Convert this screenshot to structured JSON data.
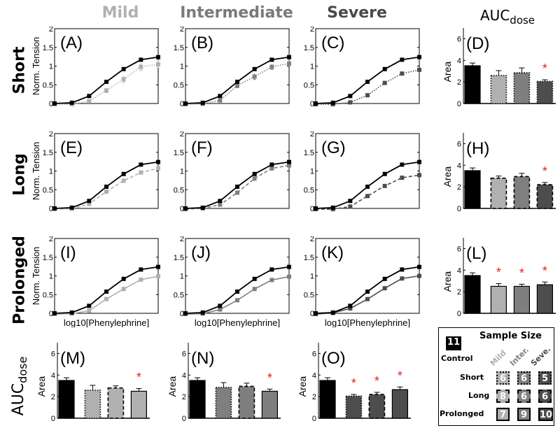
{
  "column_titles": [
    {
      "label": "Mild",
      "color": "#b0b0b0"
    },
    {
      "label": "Intermediate",
      "color": "#7a7a7a"
    },
    {
      "label": "Severe",
      "color": "#4a4a4a"
    }
  ],
  "auc_title": {
    "main": "AUC",
    "sub": "dose"
  },
  "row_titles": [
    "Short",
    "Long",
    "Prolonged"
  ],
  "colors": {
    "control": "#000000",
    "mild": "#b0b0b0",
    "intermediate": "#7f7f7f",
    "severe": "#4d4d4d",
    "significance": "#e8201c"
  },
  "chart_data": [
    {
      "id": "A",
      "type": "line",
      "panel_label": "(A)",
      "row": "Short",
      "column": "Mild",
      "ylabel": "Norm. Tension",
      "xlabel": "",
      "ylim": [
        0,
        2
      ],
      "yticks": [
        "0",
        "0.5",
        "1",
        "1.5",
        "2"
      ],
      "line_style": "dotted",
      "series": [
        {
          "name": "Control",
          "values": [
            0,
            0.02,
            0.2,
            0.58,
            0.92,
            1.17,
            1.24
          ]
        },
        {
          "name": "Mild",
          "values": [
            -0.02,
            -0.02,
            0.06,
            0.35,
            0.65,
            0.98,
            1.05
          ],
          "err": [
            0,
            0,
            0.03,
            0.06,
            0.09,
            0.1,
            0.1
          ]
        }
      ]
    },
    {
      "id": "B",
      "type": "line",
      "panel_label": "(B)",
      "row": "Short",
      "column": "Intermediate",
      "ylabel": "",
      "xlabel": "",
      "ylim": [
        0,
        2
      ],
      "yticks": [
        "0",
        "0.5",
        "1",
        "1.5",
        "2"
      ],
      "line_style": "dotted",
      "series": [
        {
          "name": "Control",
          "values": [
            0,
            0.02,
            0.2,
            0.58,
            0.92,
            1.17,
            1.24
          ]
        },
        {
          "name": "Intermediate",
          "values": [
            -0.02,
            -0.01,
            0.08,
            0.48,
            0.72,
            0.98,
            1.07
          ],
          "err": [
            0,
            0,
            0.03,
            0.06,
            0.08,
            0.07,
            0.08
          ]
        }
      ]
    },
    {
      "id": "C",
      "type": "line",
      "panel_label": "(C)",
      "row": "Short",
      "column": "Severe",
      "ylabel": "",
      "xlabel": "",
      "ylim": [
        0,
        2
      ],
      "yticks": [
        "0",
        "0.5",
        "1",
        "1.5",
        "2"
      ],
      "line_style": "dotted",
      "series": [
        {
          "name": "Control",
          "values": [
            0,
            0.02,
            0.2,
            0.58,
            0.92,
            1.17,
            1.24
          ]
        },
        {
          "name": "Severe",
          "values": [
            -0.02,
            -0.02,
            0.03,
            0.22,
            0.55,
            0.8,
            0.9
          ],
          "err": [
            0,
            0,
            0.02,
            0.03,
            0.03,
            0.03,
            0.04
          ]
        }
      ]
    },
    {
      "id": "D",
      "type": "bar",
      "panel_label": "(D)",
      "ylabel": "Area",
      "ylim": [
        0,
        7
      ],
      "yticks": [
        "0",
        "2",
        "4",
        "6"
      ],
      "bar_style": "dotted",
      "categories": [
        "Control",
        "Mild",
        "Intermediate",
        "Severe"
      ],
      "values": [
        3.5,
        2.6,
        2.85,
        2.05
      ],
      "err": [
        0.25,
        0.45,
        0.45,
        0.15
      ],
      "significant": [
        false,
        false,
        false,
        true
      ]
    },
    {
      "id": "E",
      "type": "line",
      "panel_label": "(E)",
      "row": "Long",
      "column": "Mild",
      "ylabel": "Norm. Tension",
      "xlabel": "",
      "ylim": [
        0,
        2
      ],
      "yticks": [
        "0",
        "0.5",
        "1",
        "1.5",
        "2"
      ],
      "line_style": "dashed",
      "series": [
        {
          "name": "Control",
          "values": [
            0,
            0.02,
            0.2,
            0.58,
            0.92,
            1.17,
            1.24
          ]
        },
        {
          "name": "Mild",
          "values": [
            -0.02,
            -0.01,
            0.12,
            0.45,
            0.74,
            0.96,
            1.07
          ],
          "err": [
            0,
            0,
            0.02,
            0.04,
            0.04,
            0.04,
            0.04
          ]
        }
      ]
    },
    {
      "id": "F",
      "type": "line",
      "panel_label": "(F)",
      "row": "Long",
      "column": "Intermediate",
      "ylabel": "",
      "xlabel": "",
      "ylim": [
        0,
        2
      ],
      "yticks": [
        "0",
        "0.5",
        "1",
        "1.5",
        "2"
      ],
      "line_style": "dashed",
      "series": [
        {
          "name": "Control",
          "values": [
            0,
            0.02,
            0.2,
            0.58,
            0.92,
            1.17,
            1.24
          ]
        },
        {
          "name": "Intermediate",
          "values": [
            -0.02,
            0,
            0.1,
            0.42,
            0.8,
            1.07,
            1.15
          ],
          "err": [
            0,
            0,
            0.02,
            0.04,
            0.05,
            0.05,
            0.05
          ]
        }
      ]
    },
    {
      "id": "G",
      "type": "line",
      "panel_label": "(G)",
      "row": "Long",
      "column": "Severe",
      "ylabel": "",
      "xlabel": "",
      "ylim": [
        0,
        2
      ],
      "yticks": [
        "0",
        "0.5",
        "1",
        "1.5",
        "2"
      ],
      "line_style": "dashed",
      "series": [
        {
          "name": "Control",
          "values": [
            0,
            0.02,
            0.2,
            0.58,
            0.92,
            1.17,
            1.24
          ]
        },
        {
          "name": "Severe",
          "values": [
            -0.02,
            -0.02,
            0.05,
            0.33,
            0.6,
            0.82,
            0.89
          ],
          "err": [
            0,
            0,
            0.02,
            0.03,
            0.03,
            0.03,
            0.03
          ]
        }
      ]
    },
    {
      "id": "H",
      "type": "bar",
      "panel_label": "(H)",
      "ylabel": "Area",
      "ylim": [
        0,
        7
      ],
      "yticks": [
        "0",
        "2",
        "4",
        "6"
      ],
      "bar_style": "dashed",
      "categories": [
        "Control",
        "Mild",
        "Intermediate",
        "Severe"
      ],
      "values": [
        3.5,
        2.8,
        2.95,
        2.2
      ],
      "err": [
        0.25,
        0.2,
        0.3,
        0.2
      ],
      "significant": [
        false,
        false,
        false,
        true
      ]
    },
    {
      "id": "I",
      "type": "line",
      "panel_label": "(I)",
      "row": "Prolonged",
      "column": "Mild",
      "ylabel": "Norm. Tension",
      "xlabel": "log10[Phenylephrine]",
      "ylim": [
        0,
        2
      ],
      "yticks": [
        "0",
        "0.5",
        "1",
        "1.5",
        "2"
      ],
      "line_style": "solid",
      "series": [
        {
          "name": "Control",
          "values": [
            0,
            0.02,
            0.2,
            0.58,
            0.92,
            1.17,
            1.24
          ]
        },
        {
          "name": "Mild",
          "values": [
            -0.02,
            -0.01,
            0.07,
            0.38,
            0.65,
            0.9,
            0.99
          ],
          "err": [
            0,
            0,
            0.02,
            0.03,
            0.03,
            0.03,
            0.03
          ]
        }
      ]
    },
    {
      "id": "J",
      "type": "line",
      "panel_label": "(J)",
      "row": "Prolonged",
      "column": "Intermediate",
      "ylabel": "",
      "xlabel": "log10[Phenylephrine]",
      "ylim": [
        0,
        2
      ],
      "yticks": [
        "0",
        "0.5",
        "1",
        "1.5",
        "2"
      ],
      "line_style": "solid",
      "series": [
        {
          "name": "Control",
          "values": [
            0,
            0.02,
            0.2,
            0.58,
            0.92,
            1.17,
            1.24
          ]
        },
        {
          "name": "Intermediate",
          "values": [
            -0.02,
            -0.01,
            0.1,
            0.35,
            0.65,
            0.89,
            0.98
          ],
          "err": [
            0,
            0,
            0.02,
            0.03,
            0.03,
            0.04,
            0.04
          ]
        }
      ]
    },
    {
      "id": "K",
      "type": "line",
      "panel_label": "(K)",
      "row": "Prolonged",
      "column": "Severe",
      "ylabel": "",
      "xlabel": "log10[Phenylephrine]",
      "ylim": [
        0,
        2
      ],
      "yticks": [
        "0",
        "0.5",
        "1",
        "1.5",
        "2"
      ],
      "line_style": "solid",
      "series": [
        {
          "name": "Control",
          "values": [
            0,
            0.02,
            0.2,
            0.58,
            0.92,
            1.17,
            1.24
          ]
        },
        {
          "name": "Severe",
          "values": [
            -0.02,
            0.01,
            0.13,
            0.38,
            0.67,
            0.93,
            1.0
          ],
          "err": [
            0,
            0,
            0.02,
            0.03,
            0.03,
            0.03,
            0.04
          ]
        }
      ]
    },
    {
      "id": "L",
      "type": "bar",
      "panel_label": "(L)",
      "ylabel": "Area",
      "ylim": [
        0,
        7
      ],
      "yticks": [
        "0",
        "2",
        "4",
        "6"
      ],
      "bar_style": "solid",
      "categories": [
        "Control",
        "Mild",
        "Intermediate",
        "Severe"
      ],
      "values": [
        3.5,
        2.5,
        2.5,
        2.65
      ],
      "err": [
        0.25,
        0.25,
        0.2,
        0.25
      ],
      "significant": [
        false,
        true,
        true,
        true
      ]
    },
    {
      "id": "M",
      "type": "bar",
      "panel_label": "(M)",
      "ylabel": "Area",
      "ylim": [
        0,
        7
      ],
      "yticks": [
        "0",
        "2",
        "4",
        "6"
      ],
      "bar_color": "mild",
      "categories": [
        "Control",
        "Short",
        "Long",
        "Prolonged"
      ],
      "bar_styles": [
        "solid",
        "dotted",
        "dashed",
        "solid"
      ],
      "values": [
        3.5,
        2.6,
        2.8,
        2.5
      ],
      "err": [
        0.25,
        0.45,
        0.2,
        0.25
      ],
      "significant": [
        false,
        false,
        false,
        true
      ]
    },
    {
      "id": "N",
      "type": "bar",
      "panel_label": "(N)",
      "ylabel": "Area",
      "ylim": [
        0,
        7
      ],
      "yticks": [
        "0",
        "2",
        "4",
        "6"
      ],
      "bar_color": "intermediate",
      "categories": [
        "Control",
        "Short",
        "Long",
        "Prolonged"
      ],
      "bar_styles": [
        "solid",
        "dotted",
        "dashed",
        "solid"
      ],
      "values": [
        3.5,
        2.85,
        2.95,
        2.5
      ],
      "err": [
        0.25,
        0.45,
        0.3,
        0.2
      ],
      "significant": [
        false,
        false,
        false,
        true
      ]
    },
    {
      "id": "O",
      "type": "bar",
      "panel_label": "(O)",
      "ylabel": "Area",
      "ylim": [
        0,
        7
      ],
      "yticks": [
        "0",
        "2",
        "4",
        "6"
      ],
      "bar_color": "severe",
      "categories": [
        "Control",
        "Short",
        "Long",
        "Prolonged"
      ],
      "bar_styles": [
        "solid",
        "dotted",
        "dashed",
        "solid"
      ],
      "values": [
        3.5,
        2.05,
        2.2,
        2.65
      ],
      "err": [
        0.25,
        0.15,
        0.2,
        0.25
      ],
      "significant": [
        false,
        true,
        true,
        true
      ]
    }
  ],
  "legend": {
    "title": "Sample Size",
    "control_label": "Control",
    "control_n": "11",
    "column_headers": [
      "Mild",
      "Inter.",
      "Seve."
    ],
    "rows": [
      {
        "label": "Short",
        "style": "dotted",
        "n": [
          "6",
          "6",
          "5"
        ]
      },
      {
        "label": "Long",
        "style": "dashed",
        "n": [
          "8",
          "6",
          "6"
        ]
      },
      {
        "label": "Prolonged",
        "style": "solid",
        "n": [
          "7",
          "9",
          "10"
        ]
      }
    ]
  }
}
